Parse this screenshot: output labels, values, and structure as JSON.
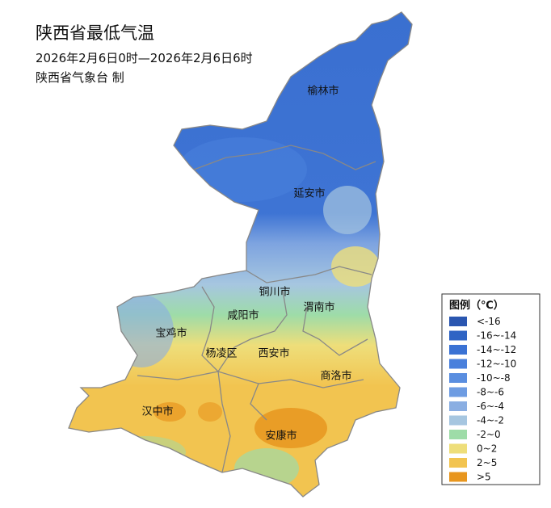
{
  "header": {
    "title": "陕西省最低气温",
    "time": "2026年2月6日0时—2026年2月6日6时",
    "issuer": "陕西省气象台 制"
  },
  "cities": [
    {
      "label": "榆林市"
    },
    {
      "label": "延安市"
    },
    {
      "label": "铜川市"
    },
    {
      "label": "咸阳市"
    },
    {
      "label": "渭南市"
    },
    {
      "label": "宝鸡市"
    },
    {
      "label": "杨凌区"
    },
    {
      "label": "西安市"
    },
    {
      "label": "商洛市"
    },
    {
      "label": "汉中市"
    },
    {
      "label": "安康市"
    }
  ],
  "legend": {
    "title": "图例（℃）",
    "items": [
      {
        "label": "<-16",
        "color": "#2a56b0"
      },
      {
        "label": "-16~-14",
        "color": "#2f64c4"
      },
      {
        "label": "-14~-12",
        "color": "#3a72d4"
      },
      {
        "label": "-12~-10",
        "color": "#4a80dc"
      },
      {
        "label": "-10~-8",
        "color": "#5a8ee0"
      },
      {
        "label": "-8~-6",
        "color": "#6e9ce2"
      },
      {
        "label": "-6~-4",
        "color": "#8aaee2"
      },
      {
        "label": "-4~-2",
        "color": "#a6c6e0"
      },
      {
        "label": "-2~0",
        "color": "#9edca8"
      },
      {
        "label": "0~2",
        "color": "#eede7a"
      },
      {
        "label": "2~5",
        "color": "#f2c450"
      },
      {
        "label": ">5",
        "color": "#e8961e"
      }
    ]
  }
}
